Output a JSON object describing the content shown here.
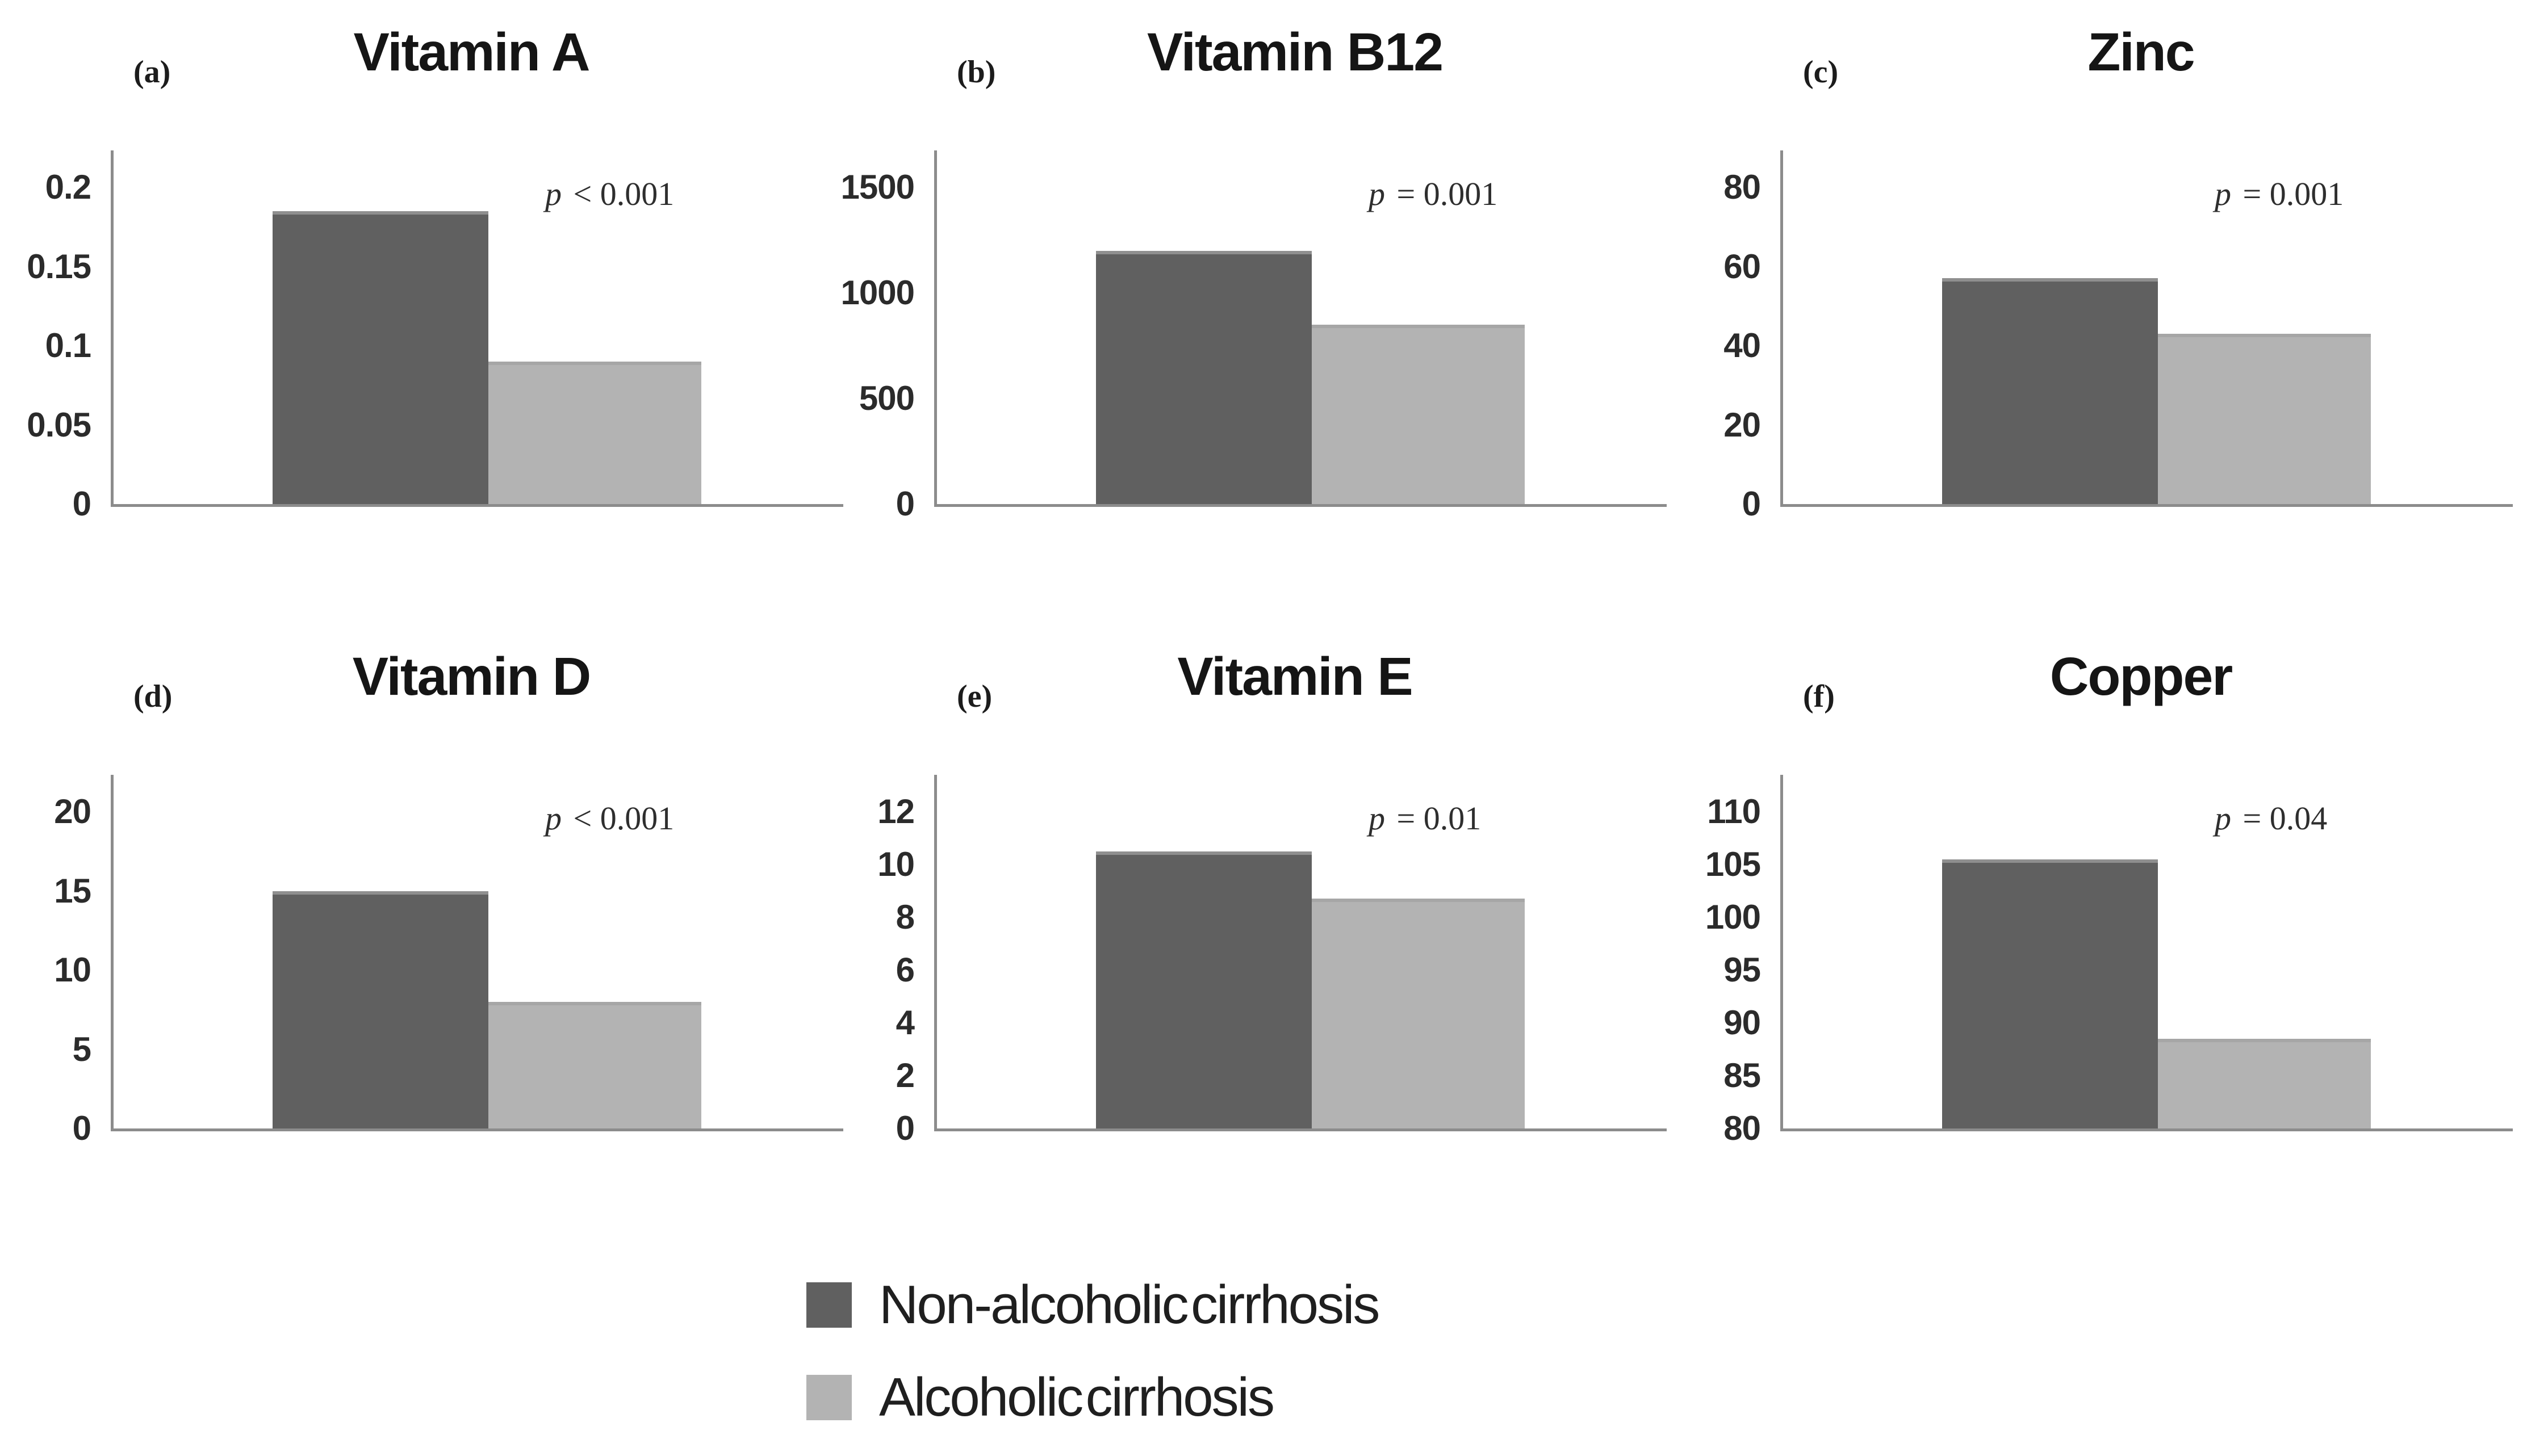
{
  "figure": {
    "background": "#ffffff"
  },
  "colors": {
    "non_alcoholic_bar": "#606060",
    "alcoholic_bar": "#b3b3b3",
    "axis": "#8c8c8c",
    "text": "#1a1a1a"
  },
  "legend": {
    "items": [
      {
        "label": "Non-alcoholic cirrhosis",
        "color": "#606060"
      },
      {
        "label": "Alcoholic cirrhosis",
        "color": "#b3b3b3"
      }
    ]
  },
  "chart_data": [
    {
      "type": "bar",
      "panel_label": "(a)",
      "title": "Vitamin A",
      "p_label": "p < 0.001",
      "categories": [
        "Non-alcoholic cirrhosis",
        "Alcoholic cirrhosis"
      ],
      "values": [
        0.185,
        0.09
      ],
      "ylim": [
        0,
        0.2
      ],
      "yticks": [
        0,
        0.05,
        0.1,
        0.15,
        0.2
      ],
      "grid": false,
      "legend_position": "bottom-shared"
    },
    {
      "type": "bar",
      "panel_label": "(b)",
      "title": "Vitamin B12",
      "p_label": "p = 0.001",
      "categories": [
        "Non-alcoholic cirrhosis",
        "Alcoholic cirrhosis"
      ],
      "values": [
        1200,
        850
      ],
      "ylim": [
        0,
        1500
      ],
      "yticks": [
        0,
        500,
        1000,
        1500
      ],
      "grid": false,
      "legend_position": "bottom-shared"
    },
    {
      "type": "bar",
      "panel_label": "(c)",
      "title": "Zinc",
      "p_label": "p = 0.001",
      "categories": [
        "Non-alcoholic cirrhosis",
        "Alcoholic cirrhosis"
      ],
      "values": [
        57,
        43
      ],
      "ylim": [
        0,
        80
      ],
      "yticks": [
        0,
        20,
        40,
        60,
        80
      ],
      "grid": false,
      "legend_position": "bottom-shared"
    },
    {
      "type": "bar",
      "panel_label": "(d)",
      "title": "Vitamin D",
      "p_label": "p < 0.001",
      "categories": [
        "Non-alcoholic cirrhosis",
        "Alcoholic cirrhosis"
      ],
      "values": [
        15,
        8
      ],
      "ylim": [
        0,
        20
      ],
      "yticks": [
        0,
        5,
        10,
        15,
        20
      ],
      "grid": false,
      "legend_position": "bottom-shared"
    },
    {
      "type": "bar",
      "panel_label": "(e)",
      "title": "Vitamin E",
      "p_label": "p = 0.01",
      "categories": [
        "Non-alcoholic cirrhosis",
        "Alcoholic cirrhosis"
      ],
      "values": [
        10.5,
        8.7
      ],
      "ylim": [
        0,
        12
      ],
      "yticks": [
        0,
        2,
        4,
        6,
        8,
        10,
        12
      ],
      "grid": false,
      "legend_position": "bottom-shared"
    },
    {
      "type": "bar",
      "panel_label": "(f)",
      "title": "Copper",
      "p_label": "p = 0.04",
      "categories": [
        "Non-alcoholic cirrhosis",
        "Alcoholic cirrhosis"
      ],
      "values": [
        105.5,
        88.5
      ],
      "ylim": [
        80,
        110
      ],
      "yticks": [
        80,
        85,
        90,
        95,
        100,
        105,
        110
      ],
      "grid": false,
      "legend_position": "bottom-shared"
    }
  ]
}
